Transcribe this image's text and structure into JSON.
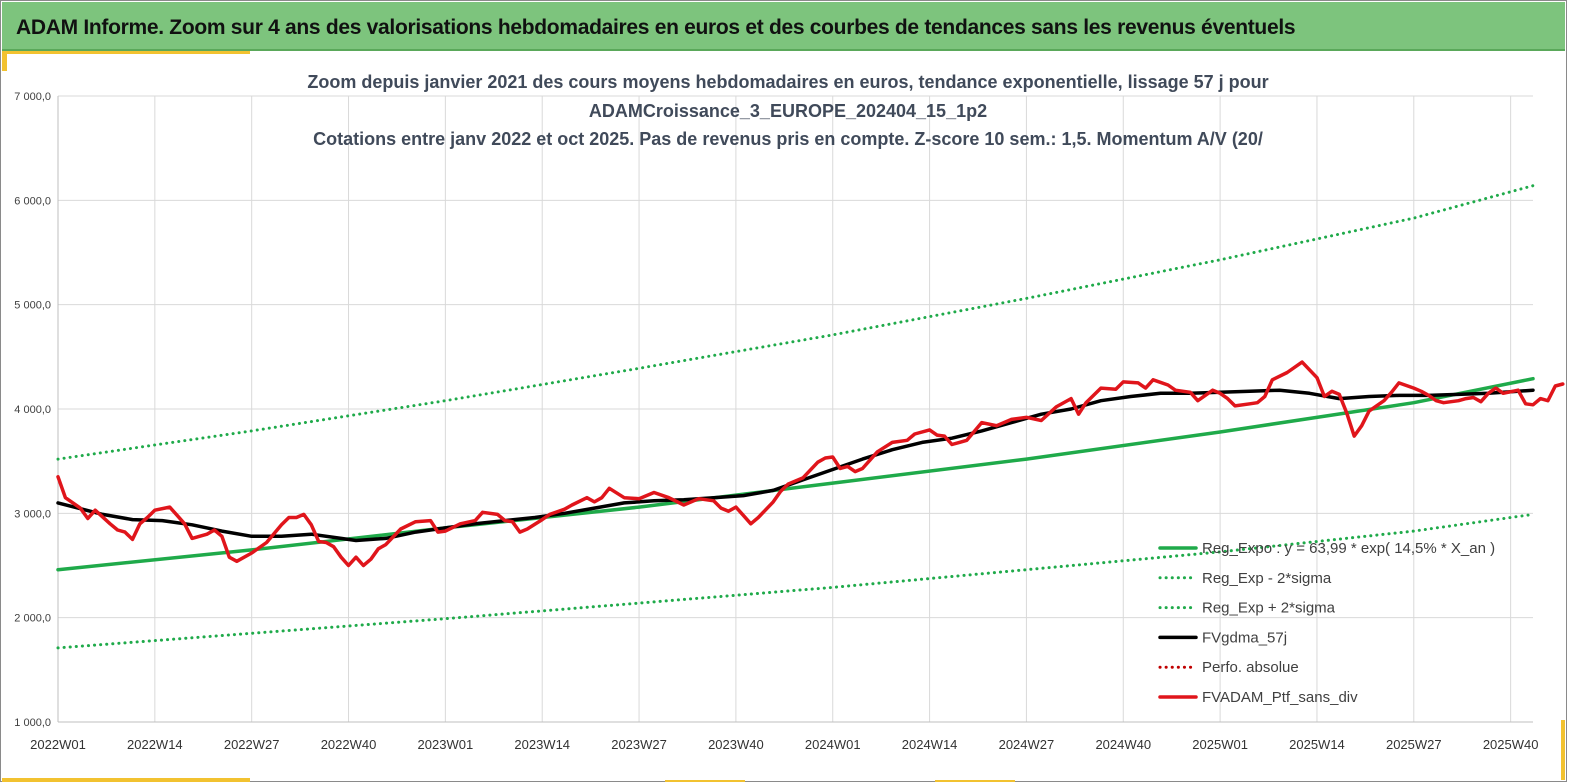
{
  "header": {
    "title": "ADAM Informe. Zoom sur 4 ans des valorisations hebdomadaires en euros et des courbes de tendances sans les revenus éventuels"
  },
  "colors": {
    "header_bg": "#7dc47d",
    "accent_yellow": "#f2c230",
    "trend": "#1faa4a",
    "moving_average": "#000000",
    "portfolio": "#e0151b",
    "perfo": "#c00000"
  },
  "chart_data": {
    "type": "line",
    "title_lines": [
      "Zoom depuis janvier 2021 des cours moyens hebdomadaires  en euros, tendance exponentielle, lissage 57 j pour",
      "ADAMCroissance_3_EUROPE_202404_15_1p2",
      "Cotations  entre janv 2022 et oct 2025. Pas de revenus pris en compte. Z-score 10 sem.: 1,5. Momentum A/V (20/"
    ],
    "ylim": [
      1000,
      7000
    ],
    "y_ticks": [
      "1 000,0",
      "2 000,0",
      "3 000,0",
      "4 000,0",
      "5 000,0",
      "6 000,0",
      "7 000,0"
    ],
    "x_range": [
      0,
      198
    ],
    "x_ticks": [
      {
        "label": "2022W01",
        "x": 0
      },
      {
        "label": "2022W14",
        "x": 13
      },
      {
        "label": "2022W27",
        "x": 26
      },
      {
        "label": "2022W40",
        "x": 39
      },
      {
        "label": "2023W01",
        "x": 52
      },
      {
        "label": "2023W14",
        "x": 65
      },
      {
        "label": "2023W27",
        "x": 78
      },
      {
        "label": "2023W40",
        "x": 91
      },
      {
        "label": "2024W01",
        "x": 104
      },
      {
        "label": "2024W14",
        "x": 117
      },
      {
        "label": "2024W27",
        "x": 130
      },
      {
        "label": "2024W40",
        "x": 143
      },
      {
        "label": "2025W01",
        "x": 156
      },
      {
        "label": "2025W14",
        "x": 169
      },
      {
        "label": "2025W27",
        "x": 182
      },
      {
        "label": "2025W40",
        "x": 195
      }
    ],
    "grid": "vertical and horizontal",
    "legend_position": "bottom-right",
    "series": [
      {
        "name": "Reg_Expo : y = 63,99 * exp( 14,5% *  X_an )",
        "style": "solid",
        "color": "#1faa4a",
        "points": [
          [
            0,
            2460
          ],
          [
            26,
            2650
          ],
          [
            52,
            2860
          ],
          [
            78,
            3060
          ],
          [
            104,
            3290
          ],
          [
            130,
            3520
          ],
          [
            156,
            3780
          ],
          [
            182,
            4060
          ],
          [
            198,
            4290
          ]
        ]
      },
      {
        "name": "Reg_Exp - 2*sigma",
        "style": "dotted",
        "color": "#1faa4a",
        "points": [
          [
            0,
            1710
          ],
          [
            26,
            1850
          ],
          [
            52,
            1990
          ],
          [
            78,
            2140
          ],
          [
            104,
            2290
          ],
          [
            130,
            2460
          ],
          [
            156,
            2630
          ],
          [
            182,
            2830
          ],
          [
            198,
            2990
          ]
        ]
      },
      {
        "name": "Reg_Exp + 2*sigma",
        "style": "dotted",
        "color": "#1faa4a",
        "points": [
          [
            0,
            3520
          ],
          [
            26,
            3790
          ],
          [
            52,
            4080
          ],
          [
            78,
            4390
          ],
          [
            104,
            4710
          ],
          [
            130,
            5060
          ],
          [
            156,
            5430
          ],
          [
            182,
            5830
          ],
          [
            198,
            6140
          ]
        ]
      },
      {
        "name": "FVgdma_57j",
        "style": "solid",
        "color": "#000000",
        "points": [
          [
            0,
            3100
          ],
          [
            6,
            2990
          ],
          [
            10,
            2940
          ],
          [
            14,
            2930
          ],
          [
            18,
            2890
          ],
          [
            22,
            2830
          ],
          [
            26,
            2780
          ],
          [
            30,
            2780
          ],
          [
            34,
            2800
          ],
          [
            38,
            2760
          ],
          [
            40,
            2740
          ],
          [
            44,
            2760
          ],
          [
            48,
            2820
          ],
          [
            52,
            2860
          ],
          [
            56,
            2900
          ],
          [
            60,
            2930
          ],
          [
            64,
            2960
          ],
          [
            68,
            3000
          ],
          [
            72,
            3050
          ],
          [
            76,
            3100
          ],
          [
            80,
            3120
          ],
          [
            84,
            3130
          ],
          [
            88,
            3150
          ],
          [
            92,
            3170
          ],
          [
            96,
            3220
          ],
          [
            100,
            3320
          ],
          [
            104,
            3420
          ],
          [
            108,
            3520
          ],
          [
            112,
            3610
          ],
          [
            116,
            3680
          ],
          [
            120,
            3720
          ],
          [
            124,
            3790
          ],
          [
            128,
            3870
          ],
          [
            132,
            3950
          ],
          [
            136,
            4000
          ],
          [
            140,
            4080
          ],
          [
            144,
            4120
          ],
          [
            148,
            4150
          ],
          [
            152,
            4150
          ],
          [
            156,
            4160
          ],
          [
            160,
            4170
          ],
          [
            164,
            4180
          ],
          [
            168,
            4150
          ],
          [
            172,
            4100
          ],
          [
            176,
            4120
          ],
          [
            180,
            4130
          ],
          [
            184,
            4130
          ],
          [
            188,
            4140
          ],
          [
            192,
            4150
          ],
          [
            196,
            4170
          ],
          [
            198,
            4180
          ]
        ]
      },
      {
        "name": "Perfo. absolue",
        "style": "dotted",
        "color": "#c00000",
        "points": []
      },
      {
        "name": "FVADAM_Ptf_sans_div",
        "style": "solid",
        "color": "#e0151b",
        "points": [
          [
            0,
            3350
          ],
          [
            1,
            3150
          ],
          [
            3,
            3050
          ],
          [
            4,
            2950
          ],
          [
            5,
            3030
          ],
          [
            7,
            2900
          ],
          [
            8,
            2840
          ],
          [
            9,
            2820
          ],
          [
            10,
            2750
          ],
          [
            11,
            2900
          ],
          [
            12,
            2960
          ],
          [
            13,
            3030
          ],
          [
            15,
            3060
          ],
          [
            16,
            2980
          ],
          [
            17,
            2900
          ],
          [
            18,
            2760
          ],
          [
            19,
            2780
          ],
          [
            20,
            2800
          ],
          [
            21,
            2840
          ],
          [
            22,
            2780
          ],
          [
            23,
            2580
          ],
          [
            24,
            2540
          ],
          [
            26,
            2620
          ],
          [
            28,
            2720
          ],
          [
            30,
            2890
          ],
          [
            31,
            2960
          ],
          [
            32,
            2960
          ],
          [
            33,
            2990
          ],
          [
            34,
            2890
          ],
          [
            35,
            2730
          ],
          [
            36,
            2720
          ],
          [
            37,
            2680
          ],
          [
            38,
            2580
          ],
          [
            39,
            2500
          ],
          [
            40,
            2580
          ],
          [
            41,
            2500
          ],
          [
            42,
            2560
          ],
          [
            43,
            2660
          ],
          [
            44,
            2700
          ],
          [
            46,
            2850
          ],
          [
            48,
            2920
          ],
          [
            50,
            2930
          ],
          [
            51,
            2820
          ],
          [
            52,
            2830
          ],
          [
            54,
            2900
          ],
          [
            56,
            2930
          ],
          [
            57,
            3010
          ],
          [
            59,
            2990
          ],
          [
            60,
            2930
          ],
          [
            61,
            2920
          ],
          [
            62,
            2820
          ],
          [
            63,
            2850
          ],
          [
            65,
            2940
          ],
          [
            66,
            2990
          ],
          [
            68,
            3040
          ],
          [
            69,
            3080
          ],
          [
            71,
            3150
          ],
          [
            72,
            3110
          ],
          [
            73,
            3150
          ],
          [
            74,
            3240
          ],
          [
            76,
            3150
          ],
          [
            78,
            3140
          ],
          [
            80,
            3200
          ],
          [
            82,
            3150
          ],
          [
            84,
            3080
          ],
          [
            86,
            3140
          ],
          [
            88,
            3120
          ],
          [
            89,
            3050
          ],
          [
            90,
            3020
          ],
          [
            91,
            3060
          ],
          [
            92,
            2980
          ],
          [
            93,
            2900
          ],
          [
            94,
            2960
          ],
          [
            96,
            3110
          ],
          [
            97,
            3210
          ],
          [
            98,
            3280
          ],
          [
            100,
            3340
          ],
          [
            102,
            3490
          ],
          [
            103,
            3530
          ],
          [
            104,
            3540
          ],
          [
            105,
            3430
          ],
          [
            106,
            3450
          ],
          [
            107,
            3400
          ],
          [
            108,
            3430
          ],
          [
            110,
            3590
          ],
          [
            112,
            3680
          ],
          [
            114,
            3700
          ],
          [
            115,
            3760
          ],
          [
            117,
            3800
          ],
          [
            118,
            3750
          ],
          [
            119,
            3740
          ],
          [
            120,
            3660
          ],
          [
            121,
            3680
          ],
          [
            122,
            3700
          ],
          [
            124,
            3870
          ],
          [
            126,
            3840
          ],
          [
            128,
            3900
          ],
          [
            130,
            3920
          ],
          [
            132,
            3890
          ],
          [
            134,
            4020
          ],
          [
            136,
            4100
          ],
          [
            137,
            3950
          ],
          [
            138,
            4060
          ],
          [
            140,
            4200
          ],
          [
            142,
            4190
          ],
          [
            143,
            4260
          ],
          [
            145,
            4250
          ],
          [
            146,
            4200
          ],
          [
            147,
            4280
          ],
          [
            149,
            4230
          ],
          [
            150,
            4180
          ],
          [
            152,
            4160
          ],
          [
            153,
            4080
          ],
          [
            155,
            4180
          ],
          [
            156,
            4150
          ],
          [
            157,
            4100
          ],
          [
            158,
            4030
          ],
          [
            160,
            4050
          ],
          [
            161,
            4060
          ],
          [
            162,
            4120
          ],
          [
            163,
            4280
          ],
          [
            165,
            4350
          ],
          [
            167,
            4450
          ],
          [
            169,
            4300
          ],
          [
            170,
            4120
          ],
          [
            171,
            4170
          ],
          [
            172,
            4140
          ],
          [
            173,
            3960
          ],
          [
            174,
            3740
          ],
          [
            175,
            3840
          ],
          [
            176,
            3980
          ],
          [
            178,
            4080
          ],
          [
            179,
            4160
          ],
          [
            180,
            4250
          ],
          [
            182,
            4200
          ],
          [
            183,
            4170
          ],
          [
            184,
            4130
          ],
          [
            185,
            4080
          ],
          [
            186,
            4060
          ],
          [
            188,
            4080
          ],
          [
            189,
            4100
          ],
          [
            190,
            4110
          ],
          [
            191,
            4070
          ],
          [
            192,
            4150
          ],
          [
            193,
            4200
          ],
          [
            194,
            4150
          ],
          [
            196,
            4180
          ],
          [
            197,
            4050
          ],
          [
            198,
            4040
          ],
          [
            199,
            4100
          ],
          [
            200,
            4080
          ],
          [
            201,
            4220
          ],
          [
            202,
            4240
          ]
        ]
      }
    ]
  }
}
